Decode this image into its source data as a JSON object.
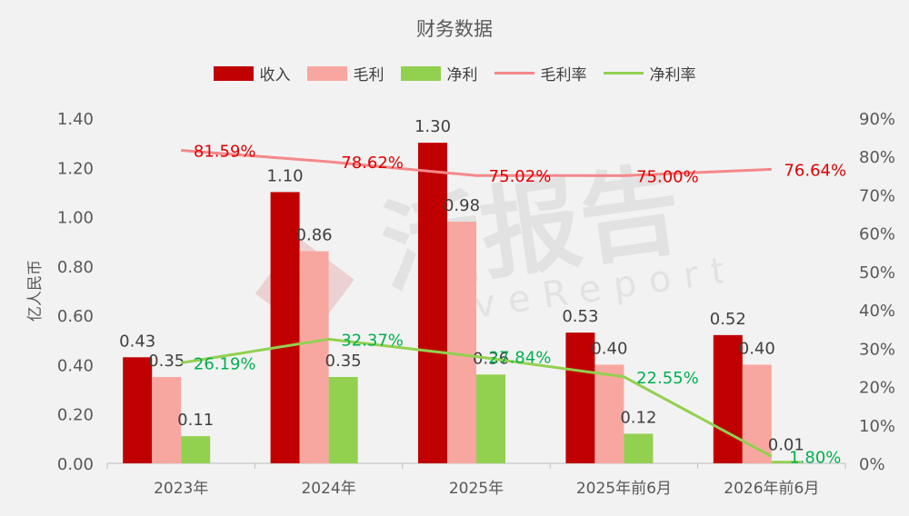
{
  "chart_data": {
    "type": "bar",
    "title": "财务数据",
    "categories": [
      "2023年",
      "2024年",
      "2025年",
      "2025年前6月",
      "2026年前6月"
    ],
    "ylabel": "亿人民币",
    "ylim": [
      0,
      1.4
    ],
    "y_ticks": [
      "0.00",
      "0.20",
      "0.40",
      "0.60",
      "0.80",
      "1.00",
      "1.20",
      "1.40"
    ],
    "y2lim": [
      0,
      90
    ],
    "y2_ticks": [
      "0%",
      "10%",
      "20%",
      "30%",
      "40%",
      "50%",
      "60%",
      "70%",
      "80%",
      "90%"
    ],
    "grid": false,
    "legend_position": "top",
    "bar_series": [
      {
        "name": "收入",
        "color": "#c00000",
        "values": [
          0.43,
          1.1,
          1.3,
          0.53,
          0.52
        ],
        "labels": [
          "0.43",
          "1.10",
          "1.30",
          "0.53",
          "0.52"
        ]
      },
      {
        "name": "毛利",
        "color": "#f8a7a0",
        "values": [
          0.35,
          0.86,
          0.98,
          0.4,
          0.4
        ],
        "labels": [
          "0.35",
          "0.86",
          "0.98",
          "0.40",
          "0.40"
        ]
      },
      {
        "name": "净利",
        "color": "#92d050",
        "values": [
          0.11,
          0.35,
          0.36,
          0.12,
          0.01
        ],
        "labels": [
          "0.11",
          "0.35",
          "0.36",
          "0.12",
          "0.01"
        ]
      }
    ],
    "line_series": [
      {
        "name": "毛利率",
        "color": "#f4888a",
        "label_color": "#e00000",
        "axis": "right",
        "values": [
          81.59,
          78.62,
          75.02,
          75.0,
          76.64
        ],
        "labels": [
          "81.59%",
          "78.62%",
          "75.02%",
          "75.00%",
          "76.64%"
        ]
      },
      {
        "name": "净利率",
        "color": "#92d050",
        "label_color": "#00b050",
        "axis": "right",
        "values": [
          26.19,
          32.37,
          27.84,
          22.55,
          1.8
        ],
        "labels": [
          "26.19%",
          "32.37%",
          "27.84%",
          "22.55%",
          "1.80%"
        ]
      }
    ],
    "watermark": {
      "main": "活报告",
      "sub": "LiveReport"
    }
  }
}
